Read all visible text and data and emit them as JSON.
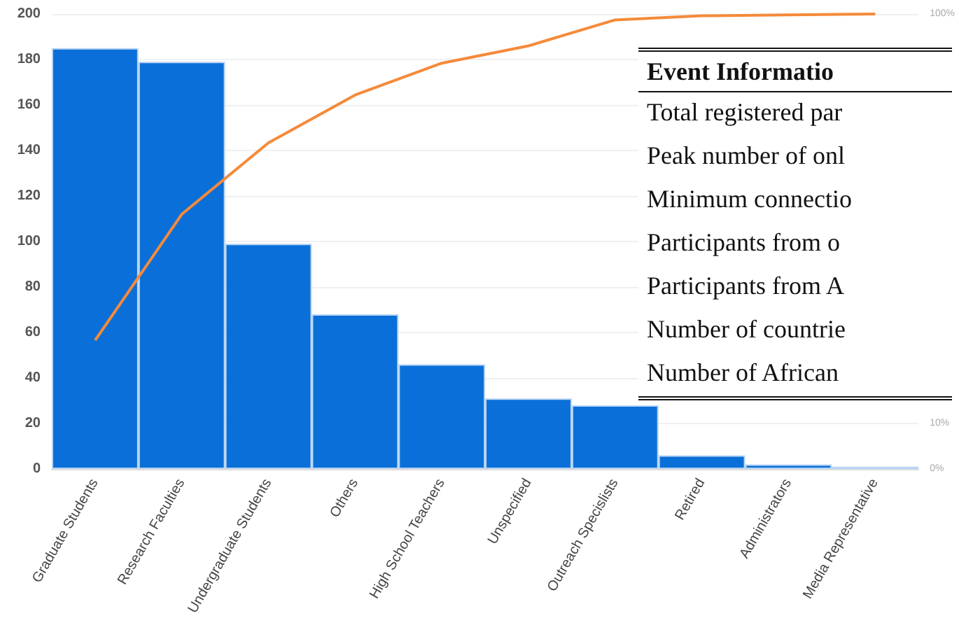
{
  "chart_data": {
    "type": "bar",
    "categories": [
      "Graduate Students",
      "Research Faculties",
      "Undergraduate Students",
      "Others",
      "High School Teachers",
      "Unspecified",
      "Outreach Specislists",
      "Retired",
      "Administrators",
      "Media Representative"
    ],
    "series": [
      {
        "color": "#0a6fd8",
        "values": [
          185,
          179,
          99,
          68,
          46,
          31,
          28,
          6,
          2,
          1
        ]
      },
      {
        "type": "line",
        "axis": "y2",
        "color": "#f58a3a",
        "values": [
          28.3,
          56,
          71.7,
          82.2,
          89.2,
          93,
          98.7,
          99.6,
          99.8,
          100
        ]
      }
    ],
    "ylim": [
      0,
      200
    ],
    "yticks": [
      0,
      20,
      40,
      60,
      80,
      100,
      120,
      140,
      160,
      180,
      200
    ],
    "y2lim": [
      0,
      100
    ],
    "y2ticks": [
      {
        "value": 0,
        "label": "0%"
      },
      {
        "value": 10,
        "label": "10%"
      },
      {
        "value": 100,
        "label": "100%"
      }
    ],
    "grid": "y",
    "marker": "none",
    "annotations": [
      "Event Informatio",
      "Total registered par",
      "Peak number of onl",
      "Minimum connectio",
      "Participants from o",
      "Participants from A",
      "Number of countrie",
      "Number of African"
    ]
  }
}
